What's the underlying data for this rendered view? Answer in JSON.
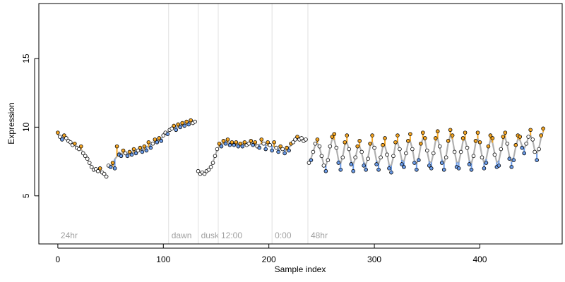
{
  "chart_data": {
    "type": "scatter",
    "title": "",
    "xlabel": "Sample index",
    "ylabel": "Expression",
    "xlim": [
      -18,
      478
    ],
    "ylim": [
      1.5,
      19
    ],
    "xticks": [
      0,
      100,
      200,
      300,
      400
    ],
    "yticks": [
      5,
      10,
      15
    ],
    "grid": false,
    "colors": {
      "fit_line": "#b0b0b0",
      "point_edge": "#000000",
      "high_residual": "#f5a623",
      "low_residual": "#6a9be8",
      "neutral_point": "#ffffff",
      "period_line": "#e0e0e0",
      "period_label": "#a0a0a0"
    },
    "period_markers": [
      {
        "x": 0,
        "label": "24hr",
        "line": false
      },
      {
        "x": 105,
        "label": "dawn",
        "line": true
      },
      {
        "x": 133,
        "label": "dusk",
        "line": true
      },
      {
        "x": 152,
        "label": "12:00",
        "line": true
      },
      {
        "x": 203,
        "label": "0:00",
        "line": true
      },
      {
        "x": 237,
        "label": "48hr",
        "line": true
      }
    ],
    "segments": [
      {
        "range": [
          0,
          47
        ],
        "points": [
          [
            0,
            9.6
          ],
          [
            2,
            9.3
          ],
          [
            4,
            9.1
          ],
          [
            6,
            9.4
          ],
          [
            8,
            9.2
          ],
          [
            10,
            9.0
          ],
          [
            12,
            8.9
          ],
          [
            14,
            8.7
          ],
          [
            16,
            8.8
          ],
          [
            18,
            8.5
          ],
          [
            20,
            8.4
          ],
          [
            22,
            8.6
          ],
          [
            24,
            8.1
          ],
          [
            26,
            7.9
          ],
          [
            28,
            7.7
          ],
          [
            30,
            7.4
          ],
          [
            32,
            7.1
          ],
          [
            34,
            6.9
          ],
          [
            36,
            6.95
          ],
          [
            38,
            6.8
          ],
          [
            40,
            7.0
          ],
          [
            42,
            6.7
          ],
          [
            44,
            6.6
          ],
          [
            46,
            6.4
          ]
        ]
      },
      {
        "range": [
          48,
          131
        ],
        "points": [
          [
            48,
            7.2
          ],
          [
            50,
            7.1
          ],
          [
            52,
            7.4
          ],
          [
            54,
            7.0
          ],
          [
            56,
            8.6
          ],
          [
            58,
            8.0
          ],
          [
            60,
            7.9
          ],
          [
            62,
            8.3
          ],
          [
            64,
            8.1
          ],
          [
            66,
            7.9
          ],
          [
            68,
            8.2
          ],
          [
            70,
            8.0
          ],
          [
            72,
            8.4
          ],
          [
            74,
            8.1
          ],
          [
            76,
            8.3
          ],
          [
            78,
            8.5
          ],
          [
            80,
            8.2
          ],
          [
            82,
            8.6
          ],
          [
            84,
            8.3
          ],
          [
            86,
            8.9
          ],
          [
            88,
            8.5
          ],
          [
            90,
            8.8
          ],
          [
            92,
            9.1
          ],
          [
            94,
            8.9
          ],
          [
            96,
            9.2
          ],
          [
            98,
            9.0
          ],
          [
            100,
            9.4
          ],
          [
            102,
            9.6
          ],
          [
            104,
            9.5
          ],
          [
            106,
            9.8
          ],
          [
            108,
            9.9
          ],
          [
            110,
            10.1
          ],
          [
            112,
            9.8
          ],
          [
            114,
            10.2
          ],
          [
            116,
            10.0
          ],
          [
            118,
            10.3
          ],
          [
            120,
            10.1
          ],
          [
            122,
            10.4
          ],
          [
            124,
            10.2
          ],
          [
            126,
            10.5
          ],
          [
            128,
            10.3
          ],
          [
            130,
            10.4
          ]
        ]
      },
      {
        "range": [
          133,
          236
        ],
        "points": [
          [
            133,
            6.8
          ],
          [
            135,
            6.6
          ],
          [
            137,
            6.7
          ],
          [
            139,
            6.6
          ],
          [
            141,
            6.8
          ],
          [
            143,
            6.9
          ],
          [
            145,
            7.1
          ],
          [
            147,
            7.4
          ],
          [
            149,
            7.9
          ],
          [
            151,
            8.4
          ],
          [
            153,
            8.8
          ],
          [
            155,
            8.6
          ],
          [
            157,
            9.0
          ],
          [
            159,
            8.8
          ],
          [
            161,
            9.1
          ],
          [
            163,
            8.7
          ],
          [
            165,
            8.9
          ],
          [
            167,
            8.7
          ],
          [
            169,
            8.9
          ],
          [
            171,
            8.6
          ],
          [
            173,
            8.8
          ],
          [
            175,
            8.6
          ],
          [
            177,
            8.9
          ],
          [
            179,
            8.7
          ],
          [
            181,
            8.8
          ],
          [
            183,
            9.0
          ],
          [
            185,
            8.7
          ],
          [
            187,
            8.9
          ],
          [
            189,
            8.6
          ],
          [
            191,
            8.5
          ],
          [
            193,
            9.1
          ],
          [
            195,
            8.8
          ],
          [
            197,
            8.4
          ],
          [
            199,
            8.9
          ],
          [
            201,
            8.7
          ],
          [
            203,
            8.3
          ],
          [
            205,
            8.9
          ],
          [
            207,
            8.5
          ],
          [
            209,
            8.2
          ],
          [
            211,
            8.6
          ],
          [
            213,
            8.4
          ],
          [
            215,
            8.1
          ],
          [
            217,
            8.5
          ],
          [
            219,
            8.3
          ],
          [
            221,
            8.8
          ],
          [
            223,
            8.9
          ],
          [
            225,
            9.1
          ],
          [
            227,
            9.3
          ],
          [
            229,
            9.1
          ],
          [
            231,
            9.2
          ],
          [
            233,
            9.0
          ],
          [
            235,
            9.1
          ]
        ]
      },
      {
        "range": [
          237,
          460
        ],
        "points": [
          [
            238,
            7.4
          ],
          [
            240,
            7.6
          ],
          [
            242,
            8.2
          ],
          [
            244,
            8.8
          ],
          [
            246,
            9.1
          ],
          [
            248,
            8.6
          ],
          [
            250,
            7.9
          ],
          [
            252,
            7.2
          ],
          [
            254,
            6.8
          ],
          [
            256,
            7.6
          ],
          [
            258,
            8.6
          ],
          [
            260,
            9.3
          ],
          [
            262,
            9.5
          ],
          [
            264,
            8.5
          ],
          [
            266,
            7.4
          ],
          [
            268,
            6.9
          ],
          [
            270,
            7.8
          ],
          [
            272,
            8.9
          ],
          [
            274,
            9.4
          ],
          [
            276,
            8.4
          ],
          [
            278,
            7.3
          ],
          [
            280,
            6.8
          ],
          [
            282,
            7.8
          ],
          [
            284,
            8.6
          ],
          [
            286,
            9.0
          ],
          [
            288,
            8.2
          ],
          [
            290,
            7.2
          ],
          [
            292,
            6.9
          ],
          [
            294,
            7.7
          ],
          [
            296,
            8.8
          ],
          [
            298,
            9.4
          ],
          [
            300,
            8.5
          ],
          [
            302,
            7.3
          ],
          [
            304,
            6.9
          ],
          [
            306,
            7.8
          ],
          [
            308,
            8.7
          ],
          [
            310,
            9.2
          ],
          [
            312,
            8.0
          ],
          [
            314,
            7.0
          ],
          [
            316,
            6.7
          ],
          [
            318,
            7.9
          ],
          [
            320,
            8.9
          ],
          [
            322,
            9.4
          ],
          [
            324,
            8.4
          ],
          [
            326,
            7.3
          ],
          [
            328,
            7.1
          ],
          [
            330,
            8.1
          ],
          [
            332,
            9.0
          ],
          [
            334,
            9.5
          ],
          [
            336,
            8.4
          ],
          [
            338,
            7.4
          ],
          [
            340,
            6.9
          ],
          [
            342,
            7.6
          ],
          [
            344,
            8.8
          ],
          [
            346,
            9.6
          ],
          [
            348,
            9.2
          ],
          [
            350,
            8.3
          ],
          [
            352,
            7.2
          ],
          [
            354,
            7.0
          ],
          [
            356,
            8.1
          ],
          [
            358,
            9.2
          ],
          [
            360,
            9.7
          ],
          [
            362,
            8.6
          ],
          [
            364,
            7.4
          ],
          [
            366,
            6.9
          ],
          [
            368,
            7.8
          ],
          [
            370,
            9.0
          ],
          [
            372,
            9.8
          ],
          [
            374,
            9.4
          ],
          [
            376,
            8.2
          ],
          [
            378,
            7.1
          ],
          [
            380,
            7.0
          ],
          [
            382,
            8.2
          ],
          [
            384,
            9.2
          ],
          [
            386,
            9.6
          ],
          [
            388,
            8.5
          ],
          [
            390,
            7.3
          ],
          [
            392,
            6.9
          ],
          [
            394,
            7.9
          ],
          [
            396,
            9.0
          ],
          [
            398,
            9.6
          ],
          [
            400,
            8.9
          ],
          [
            402,
            7.8
          ],
          [
            404,
            7.0
          ],
          [
            406,
            7.4
          ],
          [
            408,
            8.6
          ],
          [
            410,
            9.4
          ],
          [
            412,
            9.2
          ],
          [
            414,
            8.0
          ],
          [
            416,
            7.1
          ],
          [
            418,
            7.2
          ],
          [
            420,
            8.4
          ],
          [
            422,
            9.3
          ],
          [
            424,
            9.6
          ],
          [
            426,
            8.8
          ],
          [
            428,
            7.7
          ],
          [
            430,
            7.1
          ],
          [
            432,
            7.6
          ],
          [
            434,
            8.7
          ],
          [
            436,
            9.4
          ],
          [
            438,
            9.3
          ],
          [
            440,
            8.5
          ],
          [
            442,
            8.1
          ],
          [
            444,
            8.8
          ],
          [
            446,
            9.3
          ],
          [
            448,
            9.8
          ],
          [
            450,
            9.1
          ],
          [
            452,
            8.2
          ],
          [
            454,
            7.6
          ],
          [
            456,
            8.4
          ],
          [
            458,
            9.4
          ],
          [
            460,
            9.9
          ]
        ]
      }
    ]
  }
}
